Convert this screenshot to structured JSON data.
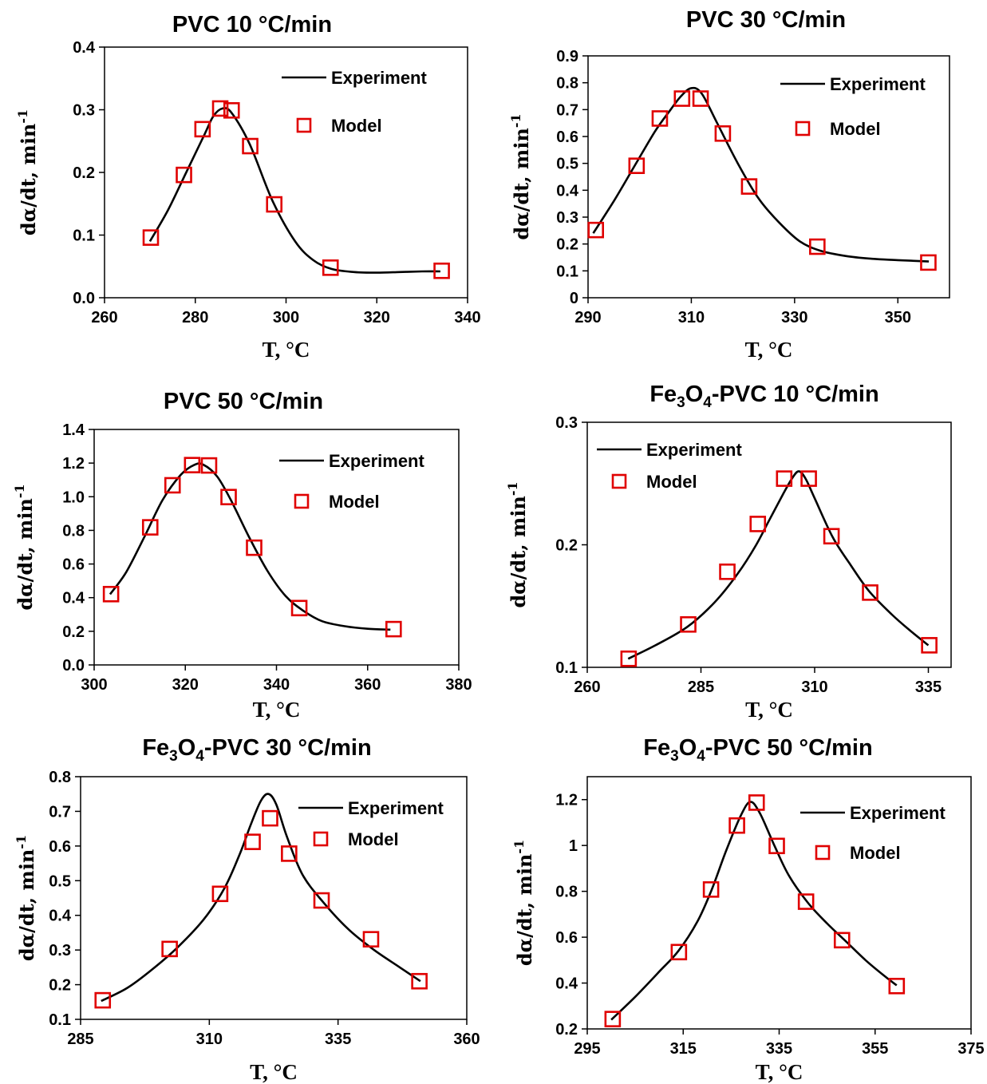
{
  "legend": {
    "experiment": "Experiment",
    "model": "Model"
  },
  "colors": {
    "experiment": "#000000",
    "model": "#e00000"
  },
  "chart_data": [
    {
      "type": "line",
      "title": "PVC 10 °C/min",
      "xlabel": "T, °C",
      "ylabel": "dα/dt, min⁻¹",
      "xlim": [
        260,
        340
      ],
      "ylim": [
        0,
        0.4
      ],
      "xticks": [
        "260",
        "280",
        "300",
        "320",
        "340"
      ],
      "yticks": [
        "0.0",
        "0.1",
        "0.2",
        "0.3",
        "0.4"
      ],
      "legend_position": "top-right",
      "grid": false,
      "series": [
        {
          "name": "Experiment",
          "style": "line",
          "x": [
            270,
            274,
            278,
            282,
            284,
            286,
            288,
            292,
            297,
            302,
            306,
            310,
            315,
            320,
            325,
            330,
            334
          ],
          "y": [
            0.09,
            0.14,
            0.2,
            0.26,
            0.29,
            0.302,
            0.295,
            0.245,
            0.155,
            0.09,
            0.06,
            0.046,
            0.041,
            0.04,
            0.041,
            0.042,
            0.042
          ]
        },
        {
          "name": "Model",
          "style": "marker",
          "x": [
            270.2,
            277.5,
            281.6,
            285.5,
            288,
            292.1,
            297.4,
            309.8,
            334.3
          ],
          "y": [
            0.096,
            0.196,
            0.269,
            0.302,
            0.299,
            0.242,
            0.149,
            0.048,
            0.043
          ]
        }
      ]
    },
    {
      "type": "line",
      "title": "PVC 30 °C/min",
      "xlabel": "T, °C",
      "ylabel": "dα/dt, min⁻¹",
      "xlim": [
        290,
        360
      ],
      "ylim": [
        0,
        0.9
      ],
      "xticks": [
        "290",
        "310",
        "330",
        "350"
      ],
      "xtick_values": [
        290,
        310,
        330,
        350
      ],
      "yticks": [
        "0",
        "0.1",
        "0.2",
        "0.3",
        "0.4",
        "0.5",
        "0.6",
        "0.7",
        "0.8",
        "0.9"
      ],
      "legend_position": "top-right",
      "grid": false,
      "series": [
        {
          "name": "Experiment",
          "style": "line",
          "x": [
            291,
            295,
            299,
            303,
            306,
            308,
            310,
            312,
            315,
            319,
            323,
            327,
            331,
            335,
            340,
            345,
            350,
            356
          ],
          "y": [
            0.24,
            0.36,
            0.49,
            0.62,
            0.7,
            0.75,
            0.78,
            0.76,
            0.65,
            0.5,
            0.37,
            0.28,
            0.21,
            0.175,
            0.155,
            0.145,
            0.14,
            0.135
          ]
        },
        {
          "name": "Model",
          "style": "marker",
          "x": [
            291.5,
            299.4,
            303.9,
            308.2,
            311.8,
            316.1,
            321.2,
            334.4,
            355.9
          ],
          "y": [
            0.252,
            0.491,
            0.667,
            0.741,
            0.741,
            0.611,
            0.414,
            0.19,
            0.131
          ]
        }
      ]
    },
    {
      "type": "line",
      "title": "PVC 50 °C/min",
      "xlabel": "T, °C",
      "ylabel": "dα/dt, min⁻¹",
      "xlim": [
        300,
        380
      ],
      "ylim": [
        0,
        1.4
      ],
      "xticks": [
        "300",
        "320",
        "340",
        "360",
        "380"
      ],
      "yticks": [
        "0.0",
        "0.2",
        "0.4",
        "0.6",
        "0.8",
        "1.0",
        "1.2",
        "1.4"
      ],
      "legend_position": "top-right",
      "grid": false,
      "series": [
        {
          "name": "Experiment",
          "style": "line",
          "x": [
            303.5,
            307,
            311,
            315,
            319,
            322,
            324,
            327,
            330,
            334,
            338,
            342,
            346,
            350,
            355,
            360,
            365
          ],
          "y": [
            0.42,
            0.55,
            0.76,
            0.98,
            1.13,
            1.19,
            1.19,
            1.12,
            0.98,
            0.76,
            0.56,
            0.41,
            0.32,
            0.26,
            0.23,
            0.215,
            0.21
          ]
        },
        {
          "name": "Model",
          "style": "marker",
          "x": [
            303.7,
            312.3,
            317.2,
            321.5,
            325.2,
            329.5,
            335.1,
            345,
            365.7
          ],
          "y": [
            0.421,
            0.818,
            1.068,
            1.188,
            1.186,
            0.998,
            0.697,
            0.338,
            0.213
          ]
        }
      ]
    },
    {
      "type": "line",
      "title": "Fe3O4-PVC 10 °C/min",
      "title_parts": {
        "a": "Fe",
        "sub1": "3",
        "b": "O",
        "sub2": "4",
        "c": "-PVC 10 °C/min"
      },
      "xlabel": "T, °C",
      "ylabel": "dα/dt, min⁻¹",
      "xlim": [
        260,
        340
      ],
      "ylim": [
        0.1,
        0.3
      ],
      "xticks": [
        "260",
        "285",
        "310",
        "335"
      ],
      "xtick_values": [
        260,
        285,
        310,
        335
      ],
      "yticks": [
        "0.1",
        "0.2",
        "0.3"
      ],
      "legend_position": "top-left",
      "grid": false,
      "series": [
        {
          "name": "Experiment",
          "style": "line",
          "x": [
            269,
            275,
            282,
            288,
            293,
            297,
            300,
            303,
            305,
            306.5,
            308,
            310,
            314,
            318,
            322,
            327,
            331,
            335
          ],
          "y": [
            0.107,
            0.118,
            0.133,
            0.153,
            0.176,
            0.199,
            0.22,
            0.241,
            0.254,
            0.26,
            0.254,
            0.238,
            0.206,
            0.183,
            0.162,
            0.143,
            0.13,
            0.118
          ]
        },
        {
          "name": "Model",
          "style": "marker",
          "x": [
            269.1,
            282.2,
            290.8,
            297.5,
            303.3,
            308.7,
            313.7,
            322.2,
            335.2
          ],
          "y": [
            0.107,
            0.135,
            0.178,
            0.217,
            0.254,
            0.254,
            0.207,
            0.161,
            0.118
          ]
        }
      ]
    },
    {
      "type": "line",
      "title": "Fe3O4-PVC 30 °C/min",
      "title_parts": {
        "a": "Fe",
        "sub1": "3",
        "b": "O",
        "sub2": "4",
        "c": "-PVC 30 °C/min"
      },
      "xlabel": "T, °C",
      "ylabel": "dα/dt, min⁻¹",
      "xlim": [
        285,
        360
      ],
      "ylim": [
        0.1,
        0.8
      ],
      "xticks": [
        "285",
        "310",
        "335",
        "360"
      ],
      "xtick_values": [
        285,
        310,
        335,
        360
      ],
      "yticks": [
        "0.1",
        "0.2",
        "0.3",
        "0.4",
        "0.5",
        "0.6",
        "0.7",
        "0.8"
      ],
      "legend_position": "top-right",
      "grid": false,
      "series": [
        {
          "name": "Experiment",
          "style": "line",
          "x": [
            289,
            294,
            299,
            304,
            309,
            313,
            316,
            318,
            320,
            321.5,
            323,
            325,
            328,
            332,
            337,
            342,
            347,
            351
          ],
          "y": [
            0.153,
            0.19,
            0.245,
            0.31,
            0.39,
            0.48,
            0.58,
            0.66,
            0.73,
            0.75,
            0.72,
            0.63,
            0.52,
            0.44,
            0.36,
            0.3,
            0.25,
            0.21
          ]
        },
        {
          "name": "Model",
          "style": "marker",
          "x": [
            289.3,
            302.3,
            312.1,
            318.4,
            321.8,
            325.5,
            331.8,
            341.4,
            350.8
          ],
          "y": [
            0.155,
            0.303,
            0.462,
            0.612,
            0.68,
            0.578,
            0.443,
            0.331,
            0.21
          ]
        }
      ]
    },
    {
      "type": "line",
      "title": "Fe3O4-PVC 50 °C/min",
      "title_parts": {
        "a": "Fe",
        "sub1": "3",
        "b": "O",
        "sub2": "4",
        "c": "-PVC 50 °C/min"
      },
      "xlabel": "T, °C",
      "ylabel": "dα/dt, min⁻¹",
      "xlim": [
        295,
        375
      ],
      "ylim": [
        0.2,
        1.3
      ],
      "xticks": [
        "295",
        "315",
        "335",
        "355",
        "375"
      ],
      "xtick_values": [
        295,
        315,
        335,
        355,
        375
      ],
      "yticks": [
        "0.2",
        "0.4",
        "0.6",
        "0.8",
        "1",
        "1.2"
      ],
      "ytick_values": [
        0.2,
        0.4,
        0.6,
        0.8,
        1.0,
        1.2
      ],
      "legend_position": "top-right",
      "grid": false,
      "series": [
        {
          "name": "Experiment",
          "style": "line",
          "x": [
            300,
            305,
            310,
            314,
            318,
            321,
            324,
            327,
            329,
            331,
            334,
            337,
            341,
            345,
            349,
            353,
            357,
            359.5
          ],
          "y": [
            0.24,
            0.34,
            0.45,
            0.54,
            0.67,
            0.81,
            0.98,
            1.13,
            1.19,
            1.14,
            1.0,
            0.87,
            0.75,
            0.66,
            0.58,
            0.5,
            0.43,
            0.39
          ]
        },
        {
          "name": "Model",
          "style": "marker",
          "x": [
            300.3,
            314.1,
            320.8,
            326.2,
            330.3,
            334.5,
            340.6,
            348.1,
            359.5
          ],
          "y": [
            0.243,
            0.535,
            0.808,
            1.087,
            1.187,
            0.998,
            0.755,
            0.587,
            0.387
          ]
        }
      ]
    }
  ]
}
